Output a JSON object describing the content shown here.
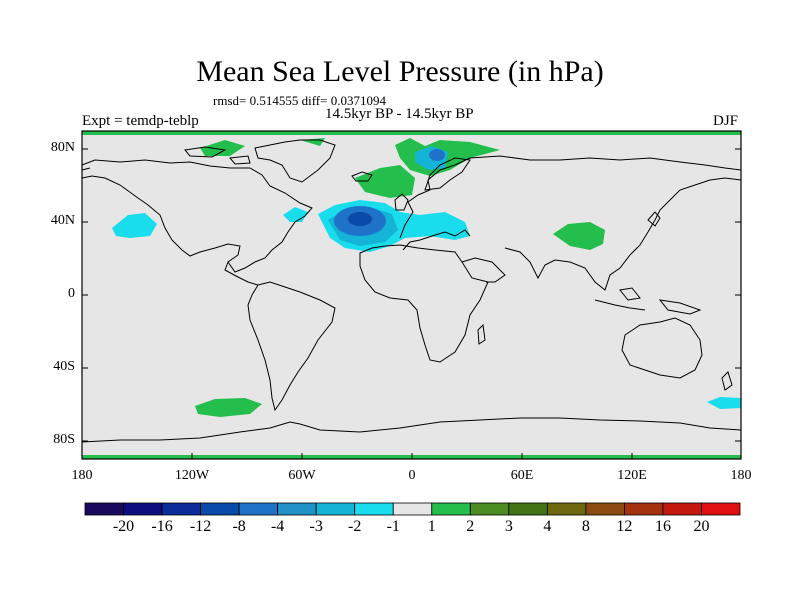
{
  "title": "Mean Sea Level Pressure (in hPa)",
  "stats": "rmsd= 0.514555  diff= 0.0371094",
  "period": "14.5kyr BP - 14.5kyr BP",
  "experiment": "Expt = temdp-teblp",
  "season": "DJF",
  "lat_ticks": [
    "80N",
    "40N",
    "0",
    "40S",
    "80S"
  ],
  "lon_ticks": [
    "180",
    "120W",
    "60W",
    "0",
    "60E",
    "120E",
    "180"
  ],
  "colorbar": {
    "labels": [
      "-20",
      "-16",
      "-12",
      "-8",
      "-4",
      "-3",
      "-2",
      "-1",
      "1",
      "2",
      "3",
      "4",
      "8",
      "12",
      "16",
      "20"
    ],
    "colors": [
      "#1a0a5e",
      "#0d0d80",
      "#0a2d9a",
      "#0a4aa8",
      "#1e73c8",
      "#2392c8",
      "#14b4d7",
      "#19dcec",
      "#e6e6e6",
      "#23be4b",
      "#4b8c23",
      "#417314",
      "#6e690f",
      "#8c4b0f",
      "#a5320f",
      "#c3190f",
      "#e10f0f"
    ]
  },
  "colors": {
    "background": "#e6e6e6",
    "positive": "#23be4b",
    "negative_light": "#19dcec",
    "negative_mid": "#14b4d7",
    "negative_strong": "#1e73c8"
  }
}
